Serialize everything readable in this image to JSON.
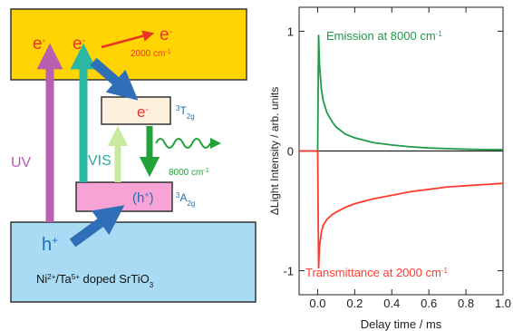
{
  "diagram": {
    "conduction_band": {
      "electrons": [
        "e",
        "e"
      ],
      "electron_sup": "-",
      "excited_electron": "e",
      "excited_label": "2000 cm",
      "excited_label_sup": "-1"
    },
    "t2g_level": {
      "electron": "e",
      "electron_sup": "-",
      "label_sup": "3",
      "label": "T",
      "label_sub": "2g"
    },
    "a2g_level": {
      "hole": "(h",
      "hole_sup": "+",
      "hole_close": ")",
      "label_sup": "3",
      "label": "A",
      "label_sub": "2g"
    },
    "valence_band": {
      "hole": "h",
      "hole_sup": "+",
      "material_parts": [
        "Ni",
        "2+",
        "/Ta",
        "5+",
        " doped SrTiO",
        "3"
      ]
    },
    "labels": {
      "uv": "UV",
      "vis": "VIS",
      "emission": "8000 cm",
      "emission_sup": "-1"
    },
    "colors": {
      "conduction_band": "#ffd400",
      "t2g_level": "#fdf0dc",
      "a2g_level": "#f7a3d6",
      "valence_band": "#a9dcf4",
      "electron_text": "#e8332a",
      "level_label": "#1f6fb5",
      "uv_arrow": "#b85fb0",
      "vis_arrow_teal": "#2bb7a3",
      "vis_arrow_light": "#c9e8a0",
      "emission": "#22a33a",
      "transfer_arrow": "#2f6fb8"
    }
  },
  "chart_data": {
    "type": "line",
    "ylabel": "ΔLight Intensity / arb. units",
    "xlabel": "Delay time / ms",
    "xlim": [
      -0.1,
      1.0
    ],
    "ylim": [
      -1.2,
      1.2
    ],
    "x_ticks": [
      "0.0",
      "0.2",
      "0.4",
      "0.6",
      "0.8",
      "1.0"
    ],
    "x_tick_values": [
      0.0,
      0.2,
      0.4,
      0.6,
      0.8,
      1.0
    ],
    "y_ticks": [
      "-1",
      "0",
      "1"
    ],
    "y_tick_values": [
      -1,
      0,
      1
    ],
    "series": [
      {
        "name": "Emission at 8000 cm-1",
        "label_main": "Emission at 8000 cm",
        "label_sup": "-1",
        "color": "#1f9a4a",
        "x": [
          -0.1,
          -0.02,
          0.0,
          0.005,
          0.01,
          0.02,
          0.03,
          0.05,
          0.08,
          0.1,
          0.15,
          0.2,
          0.3,
          0.4,
          0.5,
          0.6,
          0.7,
          0.8,
          0.9,
          1.0
        ],
        "y": [
          0,
          0,
          0,
          0.97,
          0.72,
          0.52,
          0.42,
          0.32,
          0.24,
          0.2,
          0.14,
          0.11,
          0.07,
          0.05,
          0.035,
          0.025,
          0.02,
          0.015,
          0.012,
          0.01
        ]
      },
      {
        "name": "Transmittance at 2000 cm-1",
        "label_main": "Transmittance at 2000 cm",
        "label_sup": "-1",
        "color": "#ff3b30",
        "x": [
          -0.1,
          -0.02,
          0.0,
          0.005,
          0.01,
          0.02,
          0.03,
          0.05,
          0.08,
          0.1,
          0.15,
          0.2,
          0.3,
          0.4,
          0.5,
          0.6,
          0.7,
          0.8,
          0.9,
          1.0
        ],
        "y": [
          0,
          0,
          0,
          -0.98,
          -0.8,
          -0.68,
          -0.62,
          -0.57,
          -0.53,
          -0.51,
          -0.47,
          -0.44,
          -0.4,
          -0.37,
          -0.34,
          -0.32,
          -0.3,
          -0.29,
          -0.28,
          -0.27
        ]
      }
    ]
  }
}
